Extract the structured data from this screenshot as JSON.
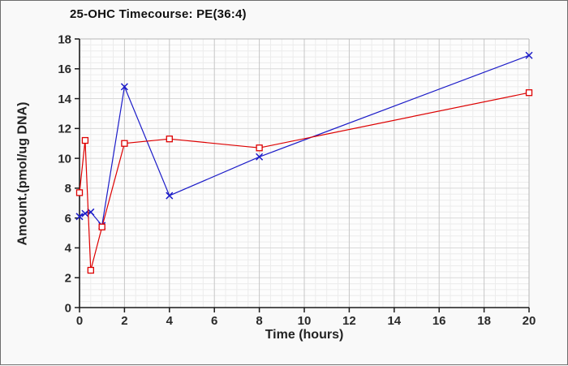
{
  "frame": {
    "background": "#f9f9f9",
    "border_color": "#6e6e6e"
  },
  "chart_data": {
    "type": "line",
    "title": "25-OHC Timecourse: PE(36:4)",
    "xlabel": "Time (hours)",
    "ylabel": "Amount.(pmol/ug DNA)",
    "xlim": [
      0,
      20
    ],
    "ylim": [
      0,
      18
    ],
    "xticks": [
      0,
      2,
      4,
      6,
      8,
      10,
      12,
      14,
      16,
      18,
      20
    ],
    "yticks": [
      0,
      2,
      4,
      6,
      8,
      10,
      12,
      14,
      16,
      18
    ],
    "grid": "on",
    "legend": "none",
    "x": [
      0,
      0.25,
      0.5,
      1,
      2,
      4,
      8,
      20
    ],
    "series": [
      {
        "id": "red-squares",
        "color": "#dd0000",
        "marker": "square",
        "values": [
          7.7,
          11.2,
          2.5,
          5.4,
          11.0,
          11.3,
          10.7,
          14.4
        ]
      },
      {
        "id": "blue-x",
        "color": "#1b1bc8",
        "marker": "x",
        "values": [
          6.1,
          6.3,
          6.4,
          5.5,
          14.8,
          7.5,
          10.1,
          16.9
        ]
      }
    ],
    "style": {
      "plot_background": "#fdfdfd",
      "minor_grid_color": "#ececec",
      "major_hgrid_color": "#d9d9d9",
      "major_vgrid_color": "#c6c6c6",
      "plot_border_color": "#b6b6b6",
      "axis_color": "#1a1a1a",
      "tick_label_color": "#2a2a2a"
    }
  }
}
